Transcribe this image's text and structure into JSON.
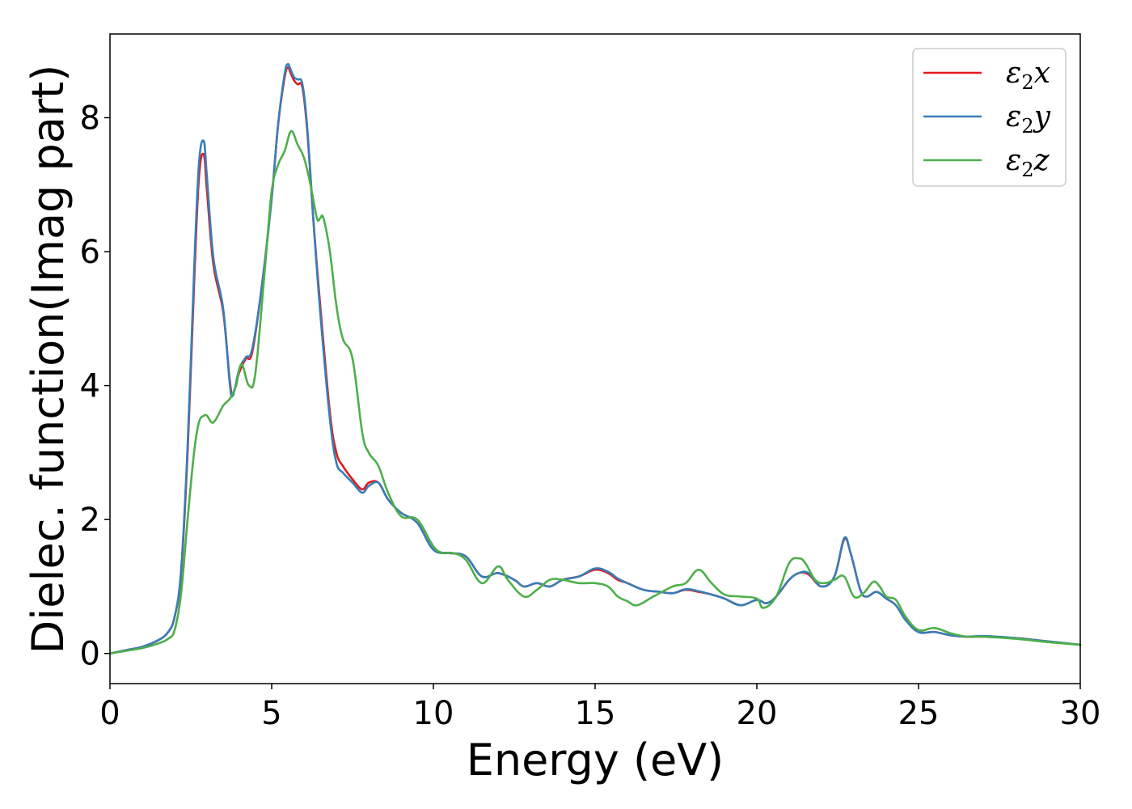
{
  "chart_data": {
    "type": "line",
    "xlabel": "Energy (eV)",
    "ylabel": "Dielec. function(Imag part)",
    "xlim": [
      0,
      30
    ],
    "ylim": [
      -0.45,
      9.25
    ],
    "xticks": [
      0,
      5,
      10,
      15,
      20,
      25,
      30
    ],
    "yticks": [
      0,
      2,
      4,
      6,
      8
    ],
    "grid": false,
    "legend_position": "top-right",
    "colors": {
      "x": "#e41a1c",
      "y": "#377eb8",
      "z": "#4daf4a"
    },
    "series": [
      {
        "name": "ε2x",
        "legend_main": "ε",
        "legend_sub": "2",
        "legend_tail": "x",
        "color": "#e41a1c",
        "x": [
          0,
          0.5,
          1.0,
          1.5,
          1.8,
          2.0,
          2.2,
          2.4,
          2.6,
          2.75,
          2.9,
          3.0,
          3.2,
          3.5,
          3.7,
          3.8,
          4.0,
          4.2,
          4.4,
          4.7,
          5.0,
          5.2,
          5.4,
          5.5,
          5.6,
          5.7,
          5.8,
          5.95,
          6.1,
          6.3,
          6.5,
          6.8,
          7.0,
          7.2,
          7.5,
          7.8,
          8.0,
          8.3,
          8.6,
          9.0,
          9.5,
          10.0,
          10.5,
          11.0,
          11.5,
          12.0,
          12.5,
          12.8,
          13.2,
          13.6,
          14.0,
          14.5,
          15.0,
          15.4,
          15.7,
          16.0,
          16.5,
          17.0,
          17.4,
          17.8,
          18.2,
          18.6,
          19.0,
          19.5,
          20.0,
          20.3,
          20.6,
          21.0,
          21.3,
          21.6,
          22.0,
          22.4,
          22.7,
          22.9,
          23.2,
          23.4,
          23.7,
          24.0,
          24.3,
          24.6,
          25.0,
          25.5,
          26.0,
          26.5,
          27.0,
          28.0,
          29.0,
          30.0
        ],
        "values": [
          0.0,
          0.05,
          0.1,
          0.2,
          0.32,
          0.55,
          1.2,
          3.0,
          5.5,
          7.1,
          7.45,
          6.9,
          5.8,
          5.1,
          4.1,
          3.88,
          4.2,
          4.4,
          4.5,
          5.5,
          6.8,
          7.9,
          8.6,
          8.75,
          8.65,
          8.55,
          8.5,
          8.45,
          7.8,
          6.4,
          5.2,
          3.6,
          3.0,
          2.8,
          2.6,
          2.45,
          2.55,
          2.55,
          2.3,
          2.1,
          1.95,
          1.55,
          1.5,
          1.45,
          1.15,
          1.2,
          1.1,
          1.0,
          1.05,
          1.0,
          1.1,
          1.15,
          1.25,
          1.2,
          1.1,
          1.05,
          0.95,
          0.92,
          0.9,
          0.95,
          0.92,
          0.88,
          0.82,
          0.72,
          0.8,
          0.75,
          0.85,
          1.1,
          1.2,
          1.18,
          1.0,
          1.15,
          1.7,
          1.5,
          0.95,
          0.85,
          0.92,
          0.82,
          0.72,
          0.5,
          0.32,
          0.32,
          0.27,
          0.25,
          0.25,
          0.23,
          0.18,
          0.13
        ]
      },
      {
        "name": "ε2y",
        "legend_main": "ε",
        "legend_sub": "2",
        "legend_tail": "y",
        "color": "#377eb8",
        "x": [
          0,
          0.5,
          1.0,
          1.5,
          1.8,
          2.0,
          2.2,
          2.4,
          2.6,
          2.75,
          2.9,
          3.0,
          3.2,
          3.5,
          3.7,
          3.8,
          4.0,
          4.2,
          4.4,
          4.7,
          5.0,
          5.2,
          5.4,
          5.5,
          5.6,
          5.7,
          5.8,
          5.95,
          6.1,
          6.3,
          6.5,
          6.8,
          7.0,
          7.2,
          7.5,
          7.8,
          8.0,
          8.3,
          8.6,
          9.0,
          9.5,
          10.0,
          10.5,
          11.0,
          11.5,
          12.0,
          12.5,
          12.8,
          13.2,
          13.6,
          14.0,
          14.5,
          15.0,
          15.4,
          15.7,
          16.0,
          16.5,
          17.0,
          17.4,
          17.8,
          18.2,
          18.6,
          19.0,
          19.5,
          20.0,
          20.3,
          20.6,
          21.0,
          21.3,
          21.6,
          22.0,
          22.4,
          22.7,
          22.9,
          23.2,
          23.4,
          23.7,
          24.0,
          24.3,
          24.6,
          25.0,
          25.5,
          26.0,
          26.5,
          27.0,
          28.0,
          29.0,
          30.0
        ],
        "values": [
          0.0,
          0.05,
          0.1,
          0.2,
          0.32,
          0.55,
          1.25,
          3.1,
          5.7,
          7.3,
          7.65,
          7.1,
          5.9,
          5.15,
          4.05,
          3.85,
          4.25,
          4.42,
          4.55,
          5.5,
          6.8,
          7.9,
          8.65,
          8.8,
          8.7,
          8.6,
          8.57,
          8.5,
          7.85,
          6.4,
          5.1,
          3.5,
          2.85,
          2.7,
          2.55,
          2.4,
          2.5,
          2.55,
          2.3,
          2.1,
          1.95,
          1.55,
          1.5,
          1.45,
          1.15,
          1.2,
          1.1,
          1.0,
          1.05,
          1.0,
          1.1,
          1.15,
          1.27,
          1.22,
          1.12,
          1.05,
          0.95,
          0.92,
          0.9,
          0.96,
          0.93,
          0.88,
          0.82,
          0.72,
          0.8,
          0.75,
          0.85,
          1.1,
          1.2,
          1.2,
          1.0,
          1.15,
          1.72,
          1.5,
          0.95,
          0.85,
          0.92,
          0.82,
          0.72,
          0.5,
          0.32,
          0.32,
          0.27,
          0.25,
          0.26,
          0.23,
          0.18,
          0.13
        ]
      },
      {
        "name": "ε2z",
        "legend_main": "ε",
        "legend_sub": "2",
        "legend_tail": "z",
        "color": "#4daf4a",
        "x": [
          0,
          0.5,
          1.0,
          1.5,
          1.8,
          2.0,
          2.2,
          2.4,
          2.6,
          2.75,
          2.9,
          3.0,
          3.2,
          3.5,
          3.7,
          3.9,
          4.0,
          4.1,
          4.3,
          4.5,
          4.8,
          5.0,
          5.2,
          5.4,
          5.6,
          5.8,
          6.0,
          6.2,
          6.4,
          6.5,
          6.6,
          6.8,
          7.0,
          7.2,
          7.5,
          7.8,
          8.0,
          8.3,
          8.6,
          9.0,
          9.5,
          10.0,
          10.3,
          10.6,
          11.0,
          11.5,
          12.0,
          12.3,
          12.8,
          13.2,
          13.6,
          14.0,
          14.5,
          15.0,
          15.4,
          15.7,
          16.0,
          16.3,
          16.8,
          17.4,
          17.8,
          18.2,
          18.6,
          19.0,
          19.5,
          20.0,
          20.2,
          20.6,
          21.0,
          21.3,
          21.5,
          21.8,
          22.1,
          22.4,
          22.7,
          23.0,
          23.3,
          23.6,
          23.8,
          24.0,
          24.3,
          24.6,
          25.0,
          25.5,
          26.0,
          26.5,
          27.0,
          28.0,
          29.0,
          30.0
        ],
        "values": [
          0.0,
          0.04,
          0.08,
          0.15,
          0.22,
          0.35,
          0.9,
          2.0,
          3.0,
          3.45,
          3.55,
          3.55,
          3.45,
          3.7,
          3.8,
          4.0,
          4.25,
          4.3,
          4.0,
          4.2,
          5.8,
          6.9,
          7.3,
          7.5,
          7.8,
          7.6,
          7.4,
          7.0,
          6.5,
          6.5,
          6.5,
          6.0,
          5.2,
          4.7,
          4.4,
          3.3,
          3.0,
          2.8,
          2.4,
          2.05,
          2.0,
          1.6,
          1.5,
          1.5,
          1.4,
          1.05,
          1.3,
          1.1,
          0.85,
          0.95,
          1.1,
          1.1,
          1.05,
          1.05,
          1.0,
          0.85,
          0.78,
          0.72,
          0.85,
          1.0,
          1.05,
          1.25,
          1.05,
          0.88,
          0.85,
          0.82,
          0.68,
          0.85,
          1.35,
          1.42,
          1.35,
          1.1,
          1.05,
          1.1,
          1.15,
          0.85,
          0.9,
          1.07,
          1.0,
          0.85,
          0.8,
          0.55,
          0.35,
          0.38,
          0.3,
          0.25,
          0.25,
          0.22,
          0.17,
          0.13
        ]
      }
    ]
  }
}
